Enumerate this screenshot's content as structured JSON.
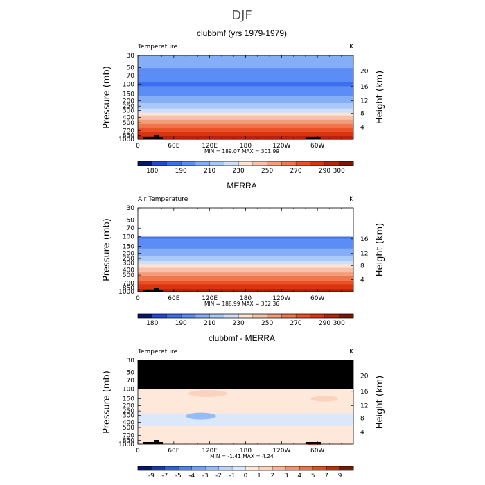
{
  "figure": {
    "title": "DJF"
  },
  "chart_data": [
    {
      "type": "heatmap",
      "title": "clubbmf (yrs 1979-1979)",
      "variable": "Temperature",
      "units": "K",
      "xlabel": "",
      "ylabel": "Pressure (mb)",
      "y2label": "Height (km)",
      "x_ticks": [
        "0",
        "60E",
        "120E",
        "180",
        "120W",
        "60W"
      ],
      "y_ticks": [
        "30",
        "50",
        "70",
        "100",
        "150",
        "200",
        "250",
        "300",
        "400",
        "500",
        "700",
        "850",
        "1000"
      ],
      "y2_ticks": [
        "4",
        "8",
        "12",
        "16",
        "20"
      ],
      "top_pressure": 30,
      "stats": "MIN = 189.07   MAX = 301.99",
      "colorbar_labels": [
        "180",
        "190",
        "210",
        "230",
        "250",
        "270",
        "290",
        "300"
      ],
      "colorbar_colors": [
        "#061471",
        "#2248d7",
        "#3c6ef0",
        "#5c8cf6",
        "#85aef7",
        "#aac8f8",
        "#cfdffa",
        "#fbe3d6",
        "#f8c1a9",
        "#f49d7b",
        "#f0764e",
        "#ea5128",
        "#d9350f",
        "#b4240b",
        "#7d1604"
      ],
      "profile": [
        {
          "p": 1000,
          "v": 297
        },
        {
          "p": 850,
          "v": 285
        },
        {
          "p": 700,
          "v": 276
        },
        {
          "p": 500,
          "v": 259
        },
        {
          "p": 400,
          "v": 248
        },
        {
          "p": 300,
          "v": 232
        },
        {
          "p": 250,
          "v": 222
        },
        {
          "p": 200,
          "v": 215
        },
        {
          "p": 150,
          "v": 207
        },
        {
          "p": 100,
          "v": 200
        },
        {
          "p": 70,
          "v": 205
        },
        {
          "p": 50,
          "v": 210
        },
        {
          "p": 30,
          "v": 216
        }
      ]
    },
    {
      "type": "heatmap",
      "title": "MERRA",
      "variable": "Air Temperature",
      "units": "K",
      "xlabel": "",
      "ylabel": "Pressure (mb)",
      "y2label": "Height (km)",
      "x_ticks": [
        "0",
        "60E",
        "120E",
        "180",
        "120W",
        "60W"
      ],
      "y_ticks": [
        "30",
        "50",
        "70",
        "100",
        "150",
        "200",
        "250",
        "300",
        "400",
        "500",
        "700",
        "850",
        "1000"
      ],
      "y2_ticks": [
        "4",
        "8",
        "12",
        "16"
      ],
      "top_pressure": 100,
      "stats": "MIN = 188.99   MAX = 302.36",
      "colorbar_labels": [
        "180",
        "190",
        "210",
        "230",
        "250",
        "270",
        "290",
        "300"
      ],
      "colorbar_colors": [
        "#061471",
        "#2248d7",
        "#3c6ef0",
        "#5c8cf6",
        "#85aef7",
        "#aac8f8",
        "#cfdffa",
        "#fbe3d6",
        "#f8c1a9",
        "#f49d7b",
        "#f0764e",
        "#ea5128",
        "#d9350f",
        "#b4240b",
        "#7d1604"
      ],
      "profile": [
        {
          "p": 1000,
          "v": 297
        },
        {
          "p": 850,
          "v": 285
        },
        {
          "p": 700,
          "v": 276
        },
        {
          "p": 500,
          "v": 259
        },
        {
          "p": 400,
          "v": 248
        },
        {
          "p": 300,
          "v": 232
        },
        {
          "p": 250,
          "v": 222
        },
        {
          "p": 200,
          "v": 215
        },
        {
          "p": 150,
          "v": 207
        },
        {
          "p": 100,
          "v": 200
        }
      ]
    },
    {
      "type": "heatmap",
      "title": "clubbmf - MERRA",
      "variable": "Temperature",
      "units": "K",
      "xlabel": "",
      "ylabel": "Pressure (mb)",
      "y2label": "Height (km)",
      "x_ticks": [
        "0",
        "60E",
        "120E",
        "180",
        "120W",
        "60W"
      ],
      "y_ticks": [
        "30",
        "50",
        "70",
        "100",
        "150",
        "200",
        "250",
        "300",
        "400",
        "500",
        "700",
        "850",
        "1000"
      ],
      "y2_ticks": [
        "4",
        "8",
        "12",
        "16",
        "20"
      ],
      "top_pressure": 30,
      "masked_above_pressure": 100,
      "stats": "MIN =  -1.41   MAX =    4.24",
      "colorbar_labels": [
        "-9",
        "-7",
        "-5",
        "-4",
        "-3",
        "-2",
        "-1",
        "0",
        "1",
        "2",
        "3",
        "4",
        "5",
        "7",
        "9"
      ],
      "colorbar_colors": [
        "#061471",
        "#1a37b9",
        "#2f5ee6",
        "#4f80f3",
        "#739ff6",
        "#97bbf7",
        "#bcd3f9",
        "#dbe8fb",
        "#fde8da",
        "#fbd2bd",
        "#f8b497",
        "#f39470",
        "#ee7048",
        "#e24a22",
        "#c12c0b",
        "#7d1604"
      ],
      "profile": [
        {
          "p": 1000,
          "v": 0.5
        },
        {
          "p": 850,
          "v": 0.3
        },
        {
          "p": 700,
          "v": 0.4
        },
        {
          "p": 500,
          "v": 0.2
        },
        {
          "p": 400,
          "v": -0.4
        },
        {
          "p": 300,
          "v": -0.3
        },
        {
          "p": 250,
          "v": 0.3
        },
        {
          "p": 200,
          "v": 0.4
        },
        {
          "p": 150,
          "v": 0.3
        },
        {
          "p": 100,
          "v": 0.5
        }
      ]
    }
  ]
}
